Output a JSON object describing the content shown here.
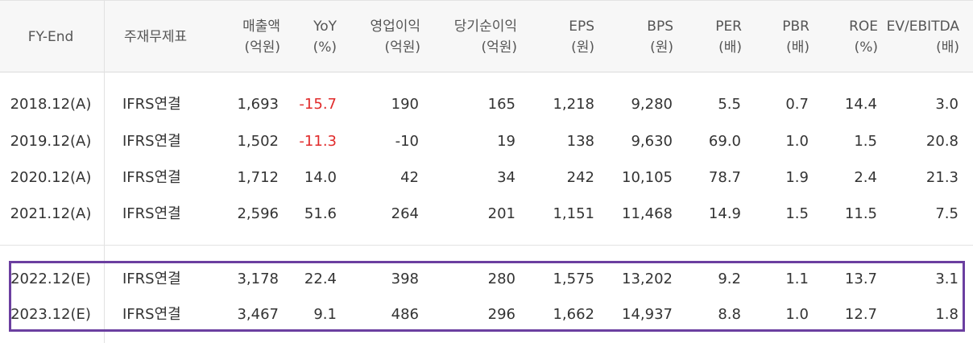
{
  "headers": [
    {
      "l1": "FY-End",
      "l2": ""
    },
    {
      "l1": "주재무제표",
      "l2": ""
    },
    {
      "l1": "매출액",
      "l2": "(억원)"
    },
    {
      "l1": "YoY",
      "l2": "(%)"
    },
    {
      "l1": "영업이익",
      "l2": "(억원)"
    },
    {
      "l1": "당기순이익",
      "l2": "(억원)"
    },
    {
      "l1": "EPS",
      "l2": "(원)"
    },
    {
      "l1": "BPS",
      "l2": "(원)"
    },
    {
      "l1": "PER",
      "l2": "(배)"
    },
    {
      "l1": "PBR",
      "l2": "(배)"
    },
    {
      "l1": "ROE",
      "l2": "(%)"
    },
    {
      "l1": "EV/EBITDA",
      "l2": "(배)"
    }
  ],
  "rows": [
    [
      "2018.12(A)",
      "IFRS연결",
      "1,693",
      "-15.7",
      "190",
      "165",
      "1,218",
      "9,280",
      "5.5",
      "0.7",
      "14.4",
      "3.0"
    ],
    [
      "2019.12(A)",
      "IFRS연결",
      "1,502",
      "-11.3",
      "-10",
      "19",
      "138",
      "9,630",
      "69.0",
      "1.0",
      "1.5",
      "20.8"
    ],
    [
      "2020.12(A)",
      "IFRS연결",
      "1,712",
      "14.0",
      "42",
      "34",
      "242",
      "10,105",
      "78.7",
      "1.9",
      "2.4",
      "21.3"
    ],
    [
      "2021.12(A)",
      "IFRS연결",
      "2,596",
      "51.6",
      "264",
      "201",
      "1,151",
      "11,468",
      "14.9",
      "1.5",
      "11.5",
      "7.5"
    ],
    [
      "2022.12(E)",
      "IFRS연결",
      "3,178",
      "22.4",
      "398",
      "280",
      "1,575",
      "13,202",
      "9.2",
      "1.1",
      "13.7",
      "3.1"
    ],
    [
      "2023.12(E)",
      "IFRS연결",
      "3,467",
      "9.1",
      "486",
      "296",
      "1,662",
      "14,937",
      "8.8",
      "1.0",
      "12.7",
      "1.8"
    ]
  ],
  "colors": {
    "negative": "#e12b2b",
    "highlight_border": "#6b3fa0",
    "header_bg": "#f7f7f7"
  }
}
